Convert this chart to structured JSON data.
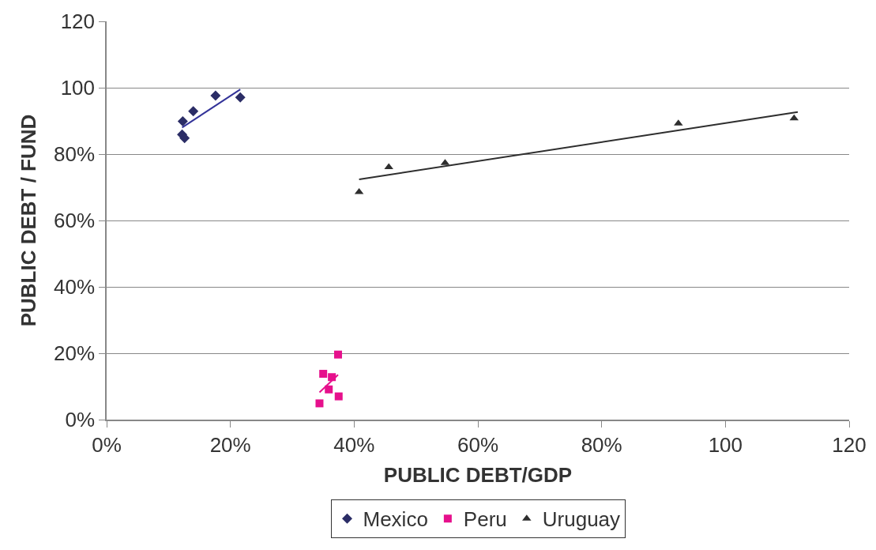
{
  "chart_data": {
    "type": "scatter",
    "xlabel": "PUBLIC DEBT/GDP",
    "ylabel": "PUBLIC DEBT / FUND",
    "xlim": [
      0,
      120
    ],
    "ylim": [
      0,
      120
    ],
    "xticks": [
      {
        "value": 0,
        "label": "0%"
      },
      {
        "value": 20,
        "label": "20%"
      },
      {
        "value": 40,
        "label": "40%"
      },
      {
        "value": 60,
        "label": "60%"
      },
      {
        "value": 80,
        "label": "80%"
      },
      100,
      120
    ],
    "yticks": [
      {
        "value": 0,
        "label": "0%"
      },
      {
        "value": 20,
        "label": "20%"
      },
      {
        "value": 40,
        "label": "40%"
      },
      {
        "value": 60,
        "label": "60%"
      },
      {
        "value": 80,
        "label": "80%"
      },
      100,
      120
    ],
    "grid": "y",
    "legend": "bottom",
    "series": [
      {
        "name": "Mexico",
        "color": "#2b2d66",
        "marker": "diamond",
        "x": [
          12.3,
          12.2,
          12.6,
          14.0,
          17.6,
          21.6
        ],
        "values": [
          89.9,
          85.9,
          84.8,
          92.9,
          97.6,
          97.1
        ]
      },
      {
        "name": "Peru",
        "color": "#e6108c",
        "marker": "square",
        "x": [
          37.4,
          35.0,
          36.4,
          35.9,
          37.5,
          34.4
        ],
        "values": [
          19.6,
          13.8,
          12.8,
          9.1,
          7.0,
          4.9
        ]
      },
      {
        "name": "Uruguay",
        "color": "#2e2e2e",
        "marker": "triangle",
        "x": [
          40.8,
          45.6,
          54.7,
          92.4,
          111.1
        ],
        "values": [
          68.6,
          76.1,
          77.3,
          89.2,
          90.8
        ]
      },
      {
        "type": "line",
        "color": "#333399",
        "x": [
          12.2,
          21.6
        ],
        "values": [
          88.0,
          99.5
        ]
      },
      {
        "type": "line",
        "color": "#e6108c",
        "x": [
          34.4,
          37.4
        ],
        "values": [
          8.2,
          13.5
        ]
      },
      {
        "type": "line",
        "color": "#2e2e2e",
        "x": [
          40.8,
          111.7
        ],
        "values": [
          72.4,
          92.7
        ]
      }
    ]
  }
}
